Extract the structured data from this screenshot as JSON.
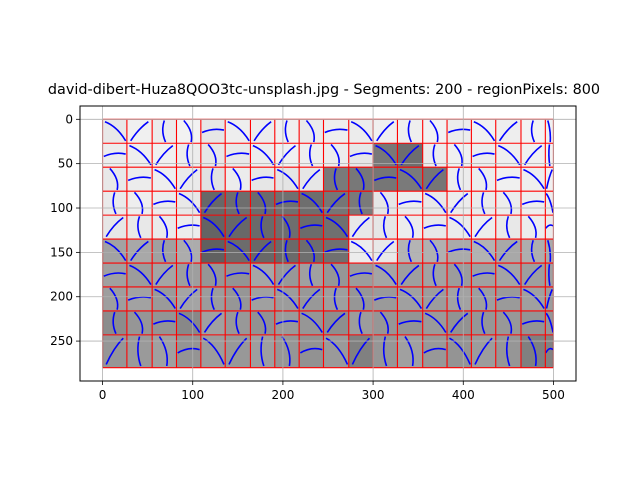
{
  "chart_data": {
    "type": "image",
    "title": "david-dibert-Huza8QOO3tc-unsplash.jpg - Segments: 200 - regionPixels: 800",
    "xlabel": "",
    "ylabel": "",
    "xlim": [
      -25,
      525
    ],
    "ylim": [
      295,
      -15
    ],
    "image_extent": [
      0,
      500,
      280,
      0
    ],
    "xticks": [
      0,
      100,
      200,
      300,
      400,
      500
    ],
    "yticks": [
      0,
      50,
      100,
      150,
      200,
      250
    ],
    "grid": true,
    "grid_color": "#b0b0b0",
    "boundary_color": "#ff0000",
    "vector_color": "#0000ff",
    "columns": [
      0,
      27,
      55,
      82,
      109,
      136,
      164,
      191,
      218,
      245,
      273,
      300,
      327,
      355,
      382,
      409,
      436,
      464,
      491,
      500
    ],
    "rows": [
      0,
      27,
      54,
      81,
      108,
      135,
      162,
      189,
      216,
      243,
      280
    ],
    "shade_rows": [
      [
        232,
        240,
        235,
        242,
        230,
        238,
        236,
        240,
        234,
        238,
        236,
        240,
        238,
        242,
        236,
        240,
        238,
        242,
        240
      ],
      [
        236,
        238,
        240,
        236,
        230,
        232,
        236,
        240,
        238,
        236,
        230,
        120,
        110,
        236,
        240,
        236,
        238,
        240,
        242
      ],
      [
        232,
        236,
        238,
        234,
        225,
        236,
        230,
        228,
        230,
        122,
        120,
        118,
        122,
        118,
        236,
        236,
        240,
        238,
        240
      ],
      [
        234,
        238,
        236,
        232,
        104,
        110,
        108,
        112,
        110,
        118,
        122,
        230,
        236,
        232,
        236,
        234,
        236,
        238,
        236
      ],
      [
        230,
        232,
        234,
        236,
        100,
        104,
        106,
        110,
        108,
        112,
        232,
        230,
        236,
        232,
        234,
        236,
        232,
        236,
        234
      ],
      [
        162,
        168,
        160,
        172,
        96,
        108,
        104,
        106,
        110,
        112,
        236,
        232,
        180,
        176,
        170,
        178,
        168,
        174,
        170
      ],
      [
        160,
        156,
        164,
        158,
        150,
        148,
        166,
        152,
        160,
        150,
        156,
        164,
        158,
        162,
        156,
        160,
        164,
        158,
        160
      ],
      [
        158,
        162,
        154,
        164,
        156,
        150,
        160,
        156,
        152,
        158,
        150,
        154,
        160,
        156,
        162,
        158,
        154,
        160,
        156
      ],
      [
        140,
        150,
        148,
        136,
        160,
        152,
        146,
        154,
        150,
        142,
        156,
        150,
        148,
        154,
        146,
        150,
        152,
        148,
        150
      ],
      [
        150,
        154,
        160,
        148,
        156,
        152,
        158,
        150,
        146,
        154,
        128,
        150,
        160,
        152,
        148,
        156,
        150,
        128,
        130
      ]
    ]
  }
}
